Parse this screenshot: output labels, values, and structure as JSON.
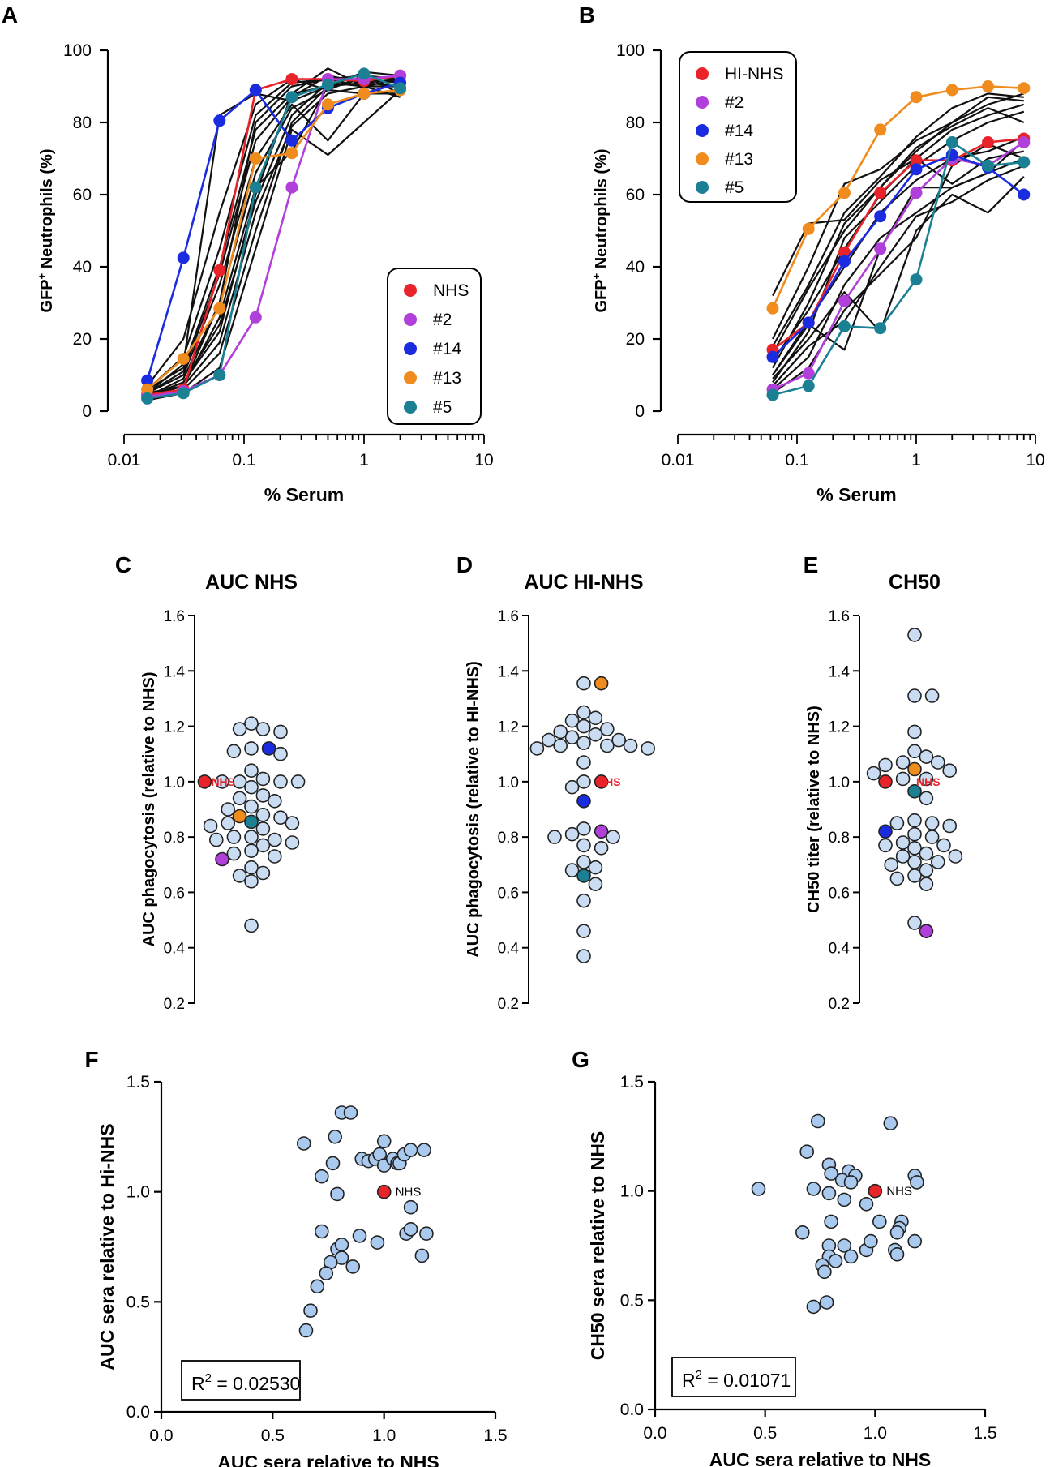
{
  "chart_data": [
    {
      "panel": "A",
      "type": "line",
      "title": "",
      "xlabel": "% Serum",
      "ylabel": "GFP+ Neutrophils (%)",
      "xscale": "log",
      "xlim": [
        0.01,
        10
      ],
      "ylim": [
        0,
        100
      ],
      "x_ticks": [
        "0.01",
        "0.1",
        "1",
        "10"
      ],
      "y_ticks": [
        "0",
        "20",
        "40",
        "60",
        "80",
        "100"
      ],
      "legend_position": "bottom-right",
      "x": [
        0.0156,
        0.03125,
        0.0625,
        0.125,
        0.25,
        0.5,
        1,
        2
      ],
      "series": [
        {
          "name": "NHS",
          "color": "#e8232a",
          "values": [
            4.5,
            6,
            39,
            89,
            92,
            92,
            91.5,
            93
          ]
        },
        {
          "name": "#2",
          "color": "#b13fd9",
          "values": [
            4,
            5.5,
            10,
            26,
            62,
            92,
            92,
            93
          ]
        },
        {
          "name": "#14",
          "color": "#1b2be0",
          "values": [
            8.5,
            42.5,
            80.5,
            89,
            75,
            84,
            88,
            91
          ]
        },
        {
          "name": "#13",
          "color": "#f08c1e",
          "values": [
            6,
            14.5,
            28.5,
            70,
            71.5,
            85,
            88,
            89
          ]
        },
        {
          "name": "#5",
          "color": "#1c8094",
          "values": [
            3.5,
            5,
            10,
            62,
            87,
            90.5,
            93.5,
            89.5
          ]
        }
      ],
      "other_sera": [
        [
          5,
          7,
          30,
          80,
          90,
          92,
          93,
          92
        ],
        [
          4,
          8,
          22,
          60,
          88,
          95,
          90,
          92
        ],
        [
          6,
          12,
          40,
          78,
          88,
          90,
          91,
          90
        ],
        [
          3,
          6,
          16,
          50,
          80,
          90,
          92,
          93
        ],
        [
          5,
          10,
          35,
          70,
          85,
          75,
          88,
          91
        ],
        [
          4,
          7,
          26,
          62,
          72,
          90,
          92,
          91
        ],
        [
          7,
          20,
          55,
          85,
          92,
          89,
          93,
          88
        ],
        [
          3,
          5,
          12,
          45,
          78,
          71,
          80,
          89
        ],
        [
          6,
          15,
          45,
          82,
          91,
          92,
          90,
          87
        ],
        [
          4,
          9,
          30,
          66,
          84,
          89,
          88,
          88
        ],
        [
          5,
          11,
          38,
          75,
          87,
          93,
          91,
          92
        ],
        [
          4,
          8,
          24,
          58,
          82,
          91,
          90,
          90
        ],
        [
          5,
          13,
          82,
          88,
          86,
          90,
          94,
          93
        ],
        [
          4,
          7,
          19,
          55,
          79,
          88,
          90,
          92
        ]
      ]
    },
    {
      "panel": "B",
      "type": "line",
      "title": "",
      "xlabel": "% Serum",
      "ylabel": "GFP+ Neutrophils (%)",
      "xscale": "log",
      "xlim": [
        0.01,
        10
      ],
      "ylim": [
        0,
        100
      ],
      "x_ticks": [
        "0.01",
        "0.1",
        "1",
        "10"
      ],
      "y_ticks": [
        "0",
        "20",
        "40",
        "60",
        "80",
        "100"
      ],
      "legend_position": "top-left",
      "x": [
        0.0625,
        0.125,
        0.25,
        0.5,
        1,
        2,
        4,
        8
      ],
      "series": [
        {
          "name": "HI-NHS",
          "color": "#e8232a",
          "values": [
            17,
            24.5,
            44,
            60.5,
            69.5,
            69.5,
            74.5,
            75.5
          ]
        },
        {
          "name": "#2",
          "color": "#b13fd9",
          "values": [
            6,
            10.5,
            30.5,
            45,
            60.5,
            70,
            68,
            74.5
          ]
        },
        {
          "name": "#14",
          "color": "#1b2be0",
          "values": [
            15,
            24.5,
            41.5,
            54,
            67,
            71,
            67.5,
            60
          ]
        },
        {
          "name": "#13",
          "color": "#f08c1e",
          "values": [
            28.5,
            50.5,
            60.5,
            78,
            87,
            89,
            90,
            89.5
          ]
        },
        {
          "name": "#5",
          "color": "#1c8094",
          "values": [
            4.5,
            7,
            23.5,
            23,
            36.5,
            74.5,
            68,
            69
          ]
        }
      ],
      "other_sera": [
        [
          32,
          52,
          53,
          64,
          70,
          78,
          82,
          85
        ],
        [
          12,
          30,
          52,
          62,
          72,
          80,
          85,
          88
        ],
        [
          8,
          22,
          48,
          58,
          68,
          75,
          80,
          83
        ],
        [
          20,
          40,
          63,
          67,
          75,
          80,
          87,
          86
        ],
        [
          10,
          25,
          40,
          55,
          64,
          70,
          72,
          76
        ],
        [
          6,
          15,
          35,
          48,
          55,
          62,
          66,
          70
        ],
        [
          18,
          35,
          55,
          65,
          76,
          84,
          88,
          87
        ],
        [
          9,
          20,
          33,
          22,
          50,
          60,
          55,
          65
        ],
        [
          14,
          28,
          45,
          60,
          70,
          63,
          70,
          72
        ],
        [
          7,
          18,
          25,
          40,
          54,
          58,
          64,
          68
        ],
        [
          16,
          34,
          50,
          62,
          73,
          79,
          84,
          80
        ],
        [
          10,
          24,
          17,
          45,
          62,
          62,
          66,
          75
        ],
        [
          5,
          12,
          28,
          38,
          48,
          68,
          74,
          70
        ]
      ]
    },
    {
      "panel": "C",
      "type": "scatter",
      "title": "AUC NHS",
      "xlabel": "",
      "ylabel": "AUC phagocytosis (relative to NHS)",
      "ylim": [
        0.2,
        1.6
      ],
      "y_ticks": [
        "0.2",
        "0.4",
        "0.6",
        "0.8",
        "1.0",
        "1.2",
        "1.4",
        "1.6"
      ],
      "annotation": "NHS",
      "highlighted": [
        {
          "name": "NHS",
          "color": "#e8232a",
          "value": 1.0
        },
        {
          "name": "#14",
          "color": "#1b2be0",
          "value": 1.12
        },
        {
          "name": "#13",
          "color": "#f08c1e",
          "value": 0.875
        },
        {
          "name": "#5",
          "color": "#1c8094",
          "value": 0.855
        },
        {
          "name": "#2",
          "color": "#b13fd9",
          "value": 0.72
        }
      ],
      "values": [
        1.21,
        1.19,
        1.19,
        1.18,
        1.12,
        1.11,
        1.1,
        1.04,
        1.01,
        1.0,
        1.0,
        1.0,
        1.0,
        0.98,
        0.95,
        0.94,
        0.93,
        0.91,
        0.9,
        0.88,
        0.87,
        0.85,
        0.85,
        0.84,
        0.83,
        0.8,
        0.8,
        0.79,
        0.79,
        0.78,
        0.77,
        0.75,
        0.74,
        0.73,
        0.69,
        0.67,
        0.66,
        0.64,
        0.48
      ]
    },
    {
      "panel": "D",
      "type": "scatter",
      "title": "AUC HI-NHS",
      "xlabel": "",
      "ylabel": "AUC phagocytosis (relative to HI-NHS)",
      "ylim": [
        0.2,
        1.6
      ],
      "y_ticks": [
        "0.2",
        "0.4",
        "0.6",
        "0.8",
        "1.0",
        "1.2",
        "1.4",
        "1.6"
      ],
      "annotation": "NHS",
      "highlighted": [
        {
          "name": "HI-NHS",
          "color": "#e8232a",
          "value": 1.0
        },
        {
          "name": "#13",
          "color": "#f08c1e",
          "value": 1.355
        },
        {
          "name": "#14",
          "color": "#1b2be0",
          "value": 0.93
        },
        {
          "name": "#2",
          "color": "#b13fd9",
          "value": 0.82
        },
        {
          "name": "#5",
          "color": "#1c8094",
          "value": 0.66
        }
      ],
      "values": [
        1.355,
        1.25,
        1.23,
        1.22,
        1.2,
        1.19,
        1.18,
        1.17,
        1.16,
        1.15,
        1.15,
        1.14,
        1.13,
        1.13,
        1.13,
        1.12,
        1.12,
        1.07,
        1.0,
        0.98,
        0.83,
        0.81,
        0.8,
        0.8,
        0.77,
        0.76,
        0.71,
        0.69,
        0.68,
        0.63,
        0.57,
        0.46,
        0.37
      ]
    },
    {
      "panel": "E",
      "type": "scatter",
      "title": "CH50",
      "xlabel": "",
      "ylabel": "CH50 titer (relative to NHS)",
      "ylim": [
        0.2,
        1.6
      ],
      "y_ticks": [
        "0.2",
        "0.4",
        "0.6",
        "0.8",
        "1.0",
        "1.2",
        "1.4",
        "1.6"
      ],
      "annotation": "NHS",
      "highlighted": [
        {
          "name": "NHS",
          "color": "#e8232a",
          "value": 1.0
        },
        {
          "name": "#13",
          "color": "#f08c1e",
          "value": 1.045
        },
        {
          "name": "#5",
          "color": "#1c8094",
          "value": 0.965
        },
        {
          "name": "#14",
          "color": "#1b2be0",
          "value": 0.82
        },
        {
          "name": "#2",
          "color": "#b13fd9",
          "value": 0.46
        }
      ],
      "values": [
        1.53,
        1.31,
        1.31,
        1.18,
        1.11,
        1.09,
        1.07,
        1.07,
        1.06,
        1.04,
        1.03,
        1.01,
        1.01,
        0.94,
        0.86,
        0.85,
        0.85,
        0.84,
        0.81,
        0.8,
        0.78,
        0.77,
        0.77,
        0.76,
        0.74,
        0.73,
        0.73,
        0.71,
        0.71,
        0.7,
        0.68,
        0.66,
        0.65,
        0.63,
        0.49
      ]
    },
    {
      "panel": "F",
      "type": "scatter",
      "title": "",
      "xlabel": "AUC sera relative to NHS",
      "ylabel": "AUC sera relative to Hi-NHS",
      "xlim": [
        0,
        1.5
      ],
      "ylim": [
        0,
        1.5
      ],
      "x_ticks": [
        "0.0",
        "0.5",
        "1.0",
        "1.5"
      ],
      "y_ticks": [
        "0.0",
        "0.5",
        "1.0",
        "1.5"
      ],
      "r_squared_label": "R",
      "r_squared_value": "= 0.02530",
      "highlight_label": "NHS",
      "highlight": {
        "x": 1.0,
        "y": 1.0,
        "color": "#e8232a"
      },
      "points": [
        [
          0.64,
          1.22
        ],
        [
          0.81,
          1.36
        ],
        [
          0.85,
          1.36
        ],
        [
          0.78,
          1.25
        ],
        [
          0.72,
          1.07
        ],
        [
          0.77,
          1.13
        ],
        [
          0.79,
          0.99
        ],
        [
          0.72,
          0.82
        ],
        [
          0.79,
          0.74
        ],
        [
          0.81,
          0.7
        ],
        [
          0.76,
          0.68
        ],
        [
          0.74,
          0.63
        ],
        [
          0.7,
          0.57
        ],
        [
          0.67,
          0.46
        ],
        [
          0.65,
          0.37
        ],
        [
          0.86,
          0.66
        ],
        [
          0.9,
          1.15
        ],
        [
          0.93,
          1.14
        ],
        [
          0.96,
          1.15
        ],
        [
          0.98,
          1.17
        ],
        [
          1.0,
          1.12
        ],
        [
          1.0,
          1.23
        ],
        [
          1.04,
          1.15
        ],
        [
          1.06,
          1.13
        ],
        [
          1.07,
          1.13
        ],
        [
          1.09,
          1.17
        ],
        [
          1.12,
          1.19
        ],
        [
          1.18,
          1.19
        ],
        [
          1.12,
          0.93
        ],
        [
          1.1,
          0.81
        ],
        [
          1.12,
          0.83
        ],
        [
          1.19,
          0.81
        ],
        [
          1.17,
          0.71
        ],
        [
          0.89,
          0.8
        ],
        [
          0.97,
          0.77
        ],
        [
          0.81,
          0.76
        ]
      ]
    },
    {
      "panel": "G",
      "type": "scatter",
      "title": "",
      "xlabel": "AUC sera relative to NHS",
      "ylabel": "CH50 sera relative to NHS",
      "xlim": [
        0,
        1.5
      ],
      "ylim": [
        0,
        1.5
      ],
      "x_ticks": [
        "0.0",
        "0.5",
        "1.0",
        "1.5"
      ],
      "y_ticks": [
        "0.0",
        "0.5",
        "1.0",
        "1.5"
      ],
      "r_squared_label": "R",
      "r_squared_value": "= 0.01071",
      "highlight_label": "NHS",
      "highlight": {
        "x": 1.0,
        "y": 1.0,
        "color": "#e8232a"
      },
      "points": [
        [
          0.47,
          1.01
        ],
        [
          0.74,
          1.32
        ],
        [
          0.69,
          1.18
        ],
        [
          0.72,
          1.01
        ],
        [
          0.67,
          0.81
        ],
        [
          0.79,
          1.12
        ],
        [
          0.8,
          1.08
        ],
        [
          0.79,
          0.99
        ],
        [
          0.88,
          1.09
        ],
        [
          0.91,
          1.07
        ],
        [
          0.85,
          1.05
        ],
        [
          0.89,
          1.04
        ],
        [
          0.86,
          0.96
        ],
        [
          0.96,
          0.94
        ],
        [
          1.07,
          1.31
        ],
        [
          1.18,
          1.07
        ],
        [
          1.19,
          1.04
        ],
        [
          1.12,
          0.86
        ],
        [
          1.11,
          0.83
        ],
        [
          1.1,
          0.81
        ],
        [
          1.18,
          0.77
        ],
        [
          1.09,
          0.73
        ],
        [
          1.1,
          0.71
        ],
        [
          0.8,
          0.86
        ],
        [
          0.79,
          0.75
        ],
        [
          0.79,
          0.7
        ],
        [
          0.76,
          0.66
        ],
        [
          0.77,
          0.63
        ],
        [
          0.78,
          0.49
        ],
        [
          0.72,
          0.47
        ],
        [
          0.86,
          0.75
        ],
        [
          0.82,
          0.68
        ],
        [
          0.89,
          0.7
        ],
        [
          0.96,
          0.73
        ],
        [
          0.98,
          0.77
        ],
        [
          1.02,
          0.86
        ]
      ]
    }
  ]
}
